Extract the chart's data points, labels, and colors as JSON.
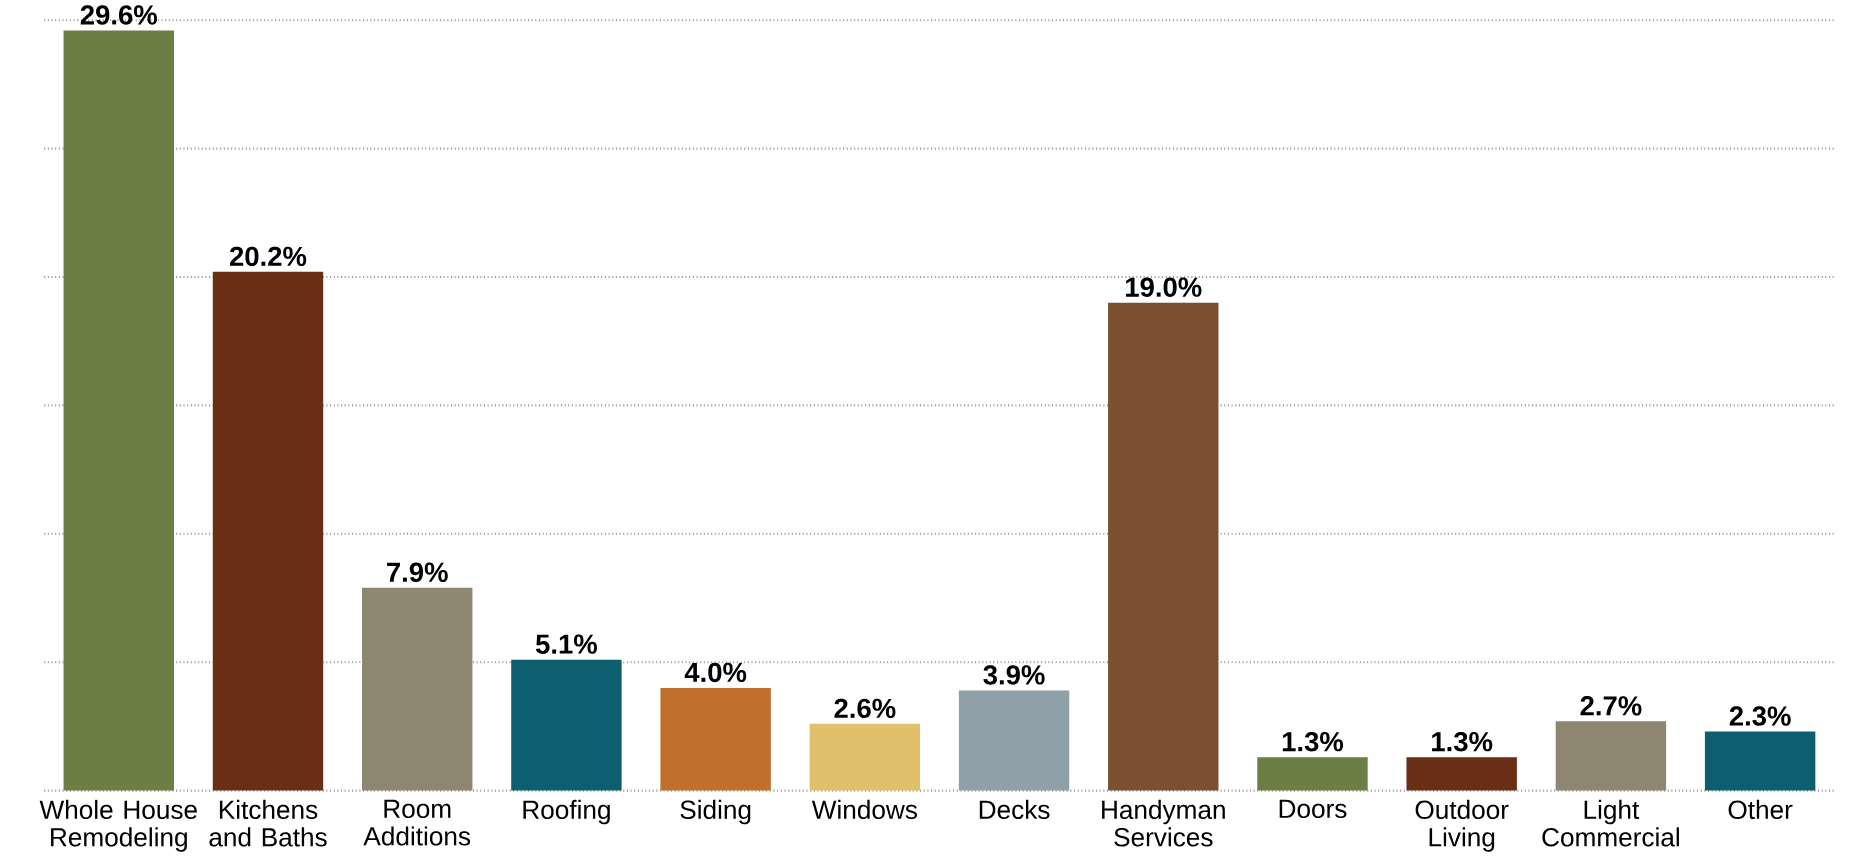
{
  "chart_data": {
    "type": "bar",
    "categories": [
      "Whole House Remodeling",
      "Kitchens and Baths",
      "Room Additions",
      "Roofing",
      "Siding",
      "Windows",
      "Decks",
      "Handyman Services",
      "Doors",
      "Outdoor Living",
      "Light Commercial",
      "Other"
    ],
    "values": [
      29.6,
      20.2,
      7.9,
      5.1,
      4.0,
      2.6,
      3.9,
      19.0,
      1.3,
      1.3,
      2.7,
      2.3
    ],
    "value_labels": [
      "29.6%",
      "20.2%",
      "7.9%",
      "5.1%",
      "4.0%",
      "2.6%",
      "3.9%",
      "19.0%",
      "1.3%",
      "1.3%",
      "2.7%",
      "2.3%"
    ],
    "colors": [
      "#6b7f45",
      "#6a2e14",
      "#8e8670",
      "#0d5e6e",
      "#c0702c",
      "#e0c06a",
      "#90a0a8",
      "#7a5030",
      "#6b7f45",
      "#6a2e14",
      "#8e8670",
      "#0d5e6e"
    ],
    "grid": "y",
    "tick_labels": "x"
  }
}
